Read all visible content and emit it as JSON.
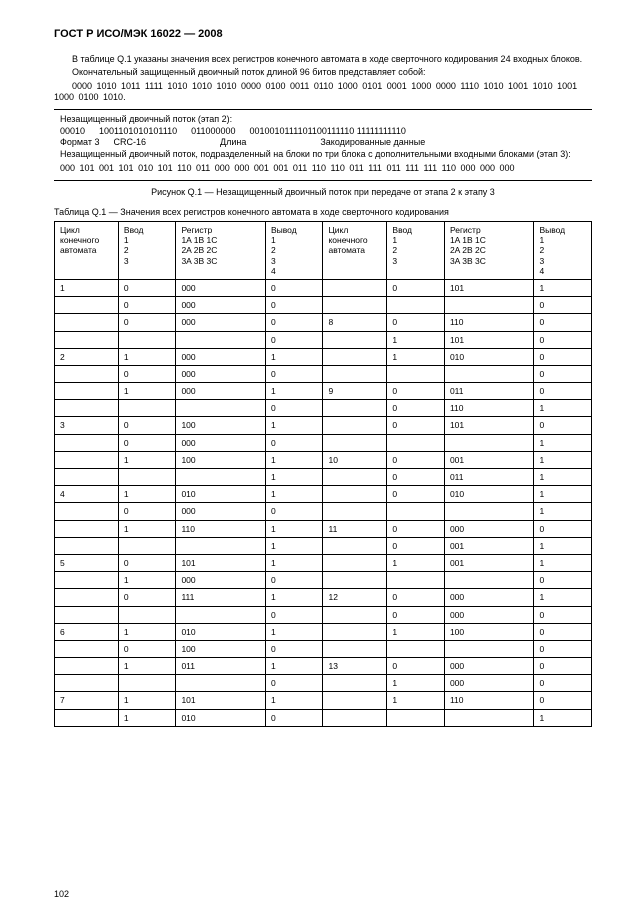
{
  "doc_title": "ГОСТ Р ИСО/МЭК 16022 — 2008",
  "para1": "В таблице Q.1 указаны значения всех регистров конечного автомата в ходе сверточного кодирования 24 входных блоков.",
  "para2": "Окончательный защищенный двоичный поток длиной 96 битов представляет собой:",
  "bits1": "0000 1010 1011 1111 1010 1010 1010 0000 0100 0011 0110 1000 0101 0001 1000 0000 1110 1010 1001 1010 1001 1000 0100 1010.",
  "figbox": {
    "line1": "Незащищенный двоичный поток (этап 2):",
    "r1a": "00010",
    "r1b": "1001101010101110",
    "r1c": "011000000",
    "r1d": "0010010111101100111110 11111111110",
    "r2a": "Формат 3",
    "r2b": "CRC-16",
    "r2c": "Длина",
    "r2d": "Закодированные данные",
    "line3": "Незащищенный двоичный поток, подразделенный на блоки по три блока с дополнительными входными блоками (этап 3):",
    "line4": "000 101 001 101 010 101 110 011 000 000 001 001 011 110 110 011 111 011 111 111 110 000 000 000"
  },
  "figcaption": "Рисунок Q.1 — Незащищенный двоичный поток при передаче от этапа 2 к этапу 3",
  "tblcaption": "Таблица Q.1 — Значения всех регистров конечного автомата в ходе сверточного кодирования",
  "headers": {
    "h1": "Цикл\nконечного\nавтомата",
    "h2": "Ввод\n1\n2\n3",
    "h3": "Регистр\n1A 1B 1C\n2A 2B 2C\n3A 3B 3C",
    "h4": "Вывод\n1\n2\n3\n4",
    "h5": "Цикл\nконечного\nавтомата",
    "h6": "Ввод\n1\n2\n3",
    "h7": "Регистр\n1A 1B 1C\n2A 2B 2C\n3A 3B 3C",
    "h8": "Вывод\n1\n2\n3\n4"
  },
  "rows": [
    [
      "1",
      "0",
      "000",
      "0",
      "",
      "0",
      "101",
      "1"
    ],
    [
      "",
      "0",
      "000",
      "0",
      "",
      "",
      "",
      "0"
    ],
    [
      "",
      "0",
      "000",
      "0",
      "8",
      "0",
      "110",
      "0"
    ],
    [
      "",
      "",
      "",
      "0",
      "",
      "1",
      "101",
      "0"
    ],
    [
      "2",
      "1",
      "000",
      "1",
      "",
      "1",
      "010",
      "0"
    ],
    [
      "",
      "0",
      "000",
      "0",
      "",
      "",
      "",
      "0"
    ],
    [
      "",
      "1",
      "000",
      "1",
      "9",
      "0",
      "011",
      "0"
    ],
    [
      "",
      "",
      "",
      "0",
      "",
      "0",
      "110",
      "1"
    ],
    [
      "3",
      "0",
      "100",
      "1",
      "",
      "0",
      "101",
      "0"
    ],
    [
      "",
      "0",
      "000",
      "0",
      "",
      "",
      "",
      "1"
    ],
    [
      "",
      "1",
      "100",
      "1",
      "10",
      "0",
      "001",
      "1"
    ],
    [
      "",
      "",
      "",
      "1",
      "",
      "0",
      "011",
      "1"
    ],
    [
      "4",
      "1",
      "010",
      "1",
      "",
      "0",
      "010",
      "1"
    ],
    [
      "",
      "0",
      "000",
      "0",
      "",
      "",
      "",
      "1"
    ],
    [
      "",
      "1",
      "110",
      "1",
      "11",
      "0",
      "000",
      "0"
    ],
    [
      "",
      "",
      "",
      "1",
      "",
      "0",
      "001",
      "1"
    ],
    [
      "5",
      "0",
      "101",
      "1",
      "",
      "1",
      "001",
      "1"
    ],
    [
      "",
      "1",
      "000",
      "0",
      "",
      "",
      "",
      "0"
    ],
    [
      "",
      "0",
      "111",
      "1",
      "12",
      "0",
      "000",
      "1"
    ],
    [
      "",
      "",
      "",
      "0",
      "",
      "0",
      "000",
      "0"
    ],
    [
      "6",
      "1",
      "010",
      "1",
      "",
      "1",
      "100",
      "0"
    ],
    [
      "",
      "0",
      "100",
      "0",
      "",
      "",
      "",
      "0"
    ],
    [
      "",
      "1",
      "011",
      "1",
      "13",
      "0",
      "000",
      "0"
    ],
    [
      "",
      "",
      "",
      "0",
      "",
      "1",
      "000",
      "0"
    ],
    [
      "7",
      "1",
      "101",
      "1",
      "",
      "1",
      "110",
      "0"
    ],
    [
      "",
      "1",
      "010",
      "0",
      "",
      "",
      "",
      "1"
    ]
  ],
  "pagenum": "102"
}
